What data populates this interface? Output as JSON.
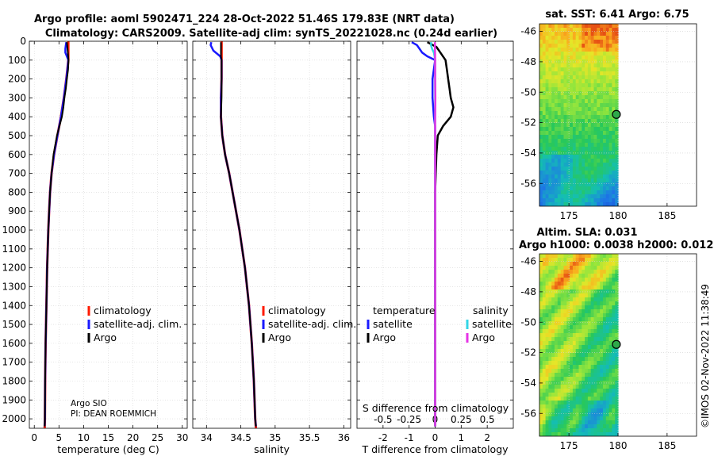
{
  "header": {
    "title_line1": "Argo profile: aoml 5902471_224 28-Oct-2022 51.46S 179.83E (NRT data)",
    "title_line2": "Climatology: CARS2009. Satellite-adj clim: synTS_20221028.nc (0.24d earlier)"
  },
  "footer": {
    "credit_line1": "Argo SIO",
    "credit_line2": "PI: DEAN ROEMMICH",
    "imos_stamp": "©IMOS 02-Nov-2022 11:38:49"
  },
  "colors": {
    "climatology": "#ff1a00",
    "satellite_adj": "#1a1aff",
    "argo": "#000000",
    "temp_satellite": "#1a1aff",
    "sal_satellite": "#33d6e6",
    "sal_argo": "#e633e6"
  },
  "chart_data": [
    {
      "type": "line",
      "name": "temperature-profile",
      "xlabel": "temperature (deg C)",
      "ylabel": "",
      "xlim": [
        -1,
        31
      ],
      "ylim": [
        2050,
        0
      ],
      "xticks": [
        0,
        5,
        10,
        15,
        20,
        25,
        30
      ],
      "xtick_labels": [
        "0",
        "5",
        "10",
        "15",
        "20",
        "25",
        "30"
      ],
      "yticks": [
        0,
        100,
        200,
        300,
        400,
        500,
        600,
        700,
        800,
        900,
        1000,
        1100,
        1200,
        1300,
        1400,
        1500,
        1600,
        1700,
        1800,
        1900,
        2000
      ],
      "ytick_labels": [
        "0",
        "100",
        "200",
        "300",
        "400",
        "500",
        "600",
        "700",
        "800",
        "900",
        "1000",
        "1100",
        "1200",
        "1300",
        "1400",
        "1500",
        "1600",
        "1700",
        "1800",
        "1900",
        "2000"
      ],
      "grid": true,
      "legend": [
        "climatology",
        "satellite-adj. clim.",
        "Argo"
      ],
      "legend_position": "center-right",
      "series": [
        {
          "name": "climatology",
          "depth": [
            0,
            50,
            100,
            150,
            200,
            300,
            400,
            500,
            600,
            700,
            800,
            900,
            1000,
            1200,
            1400,
            1600,
            1800,
            2000,
            2050
          ],
          "values": [
            6.9,
            6.9,
            6.9,
            6.7,
            6.5,
            6.0,
            5.4,
            4.7,
            4.0,
            3.5,
            3.2,
            3.0,
            2.85,
            2.6,
            2.45,
            2.3,
            2.2,
            2.15,
            2.1
          ]
        },
        {
          "name": "satellite-adj. clim.",
          "depth": [
            5,
            20,
            40,
            60,
            80,
            100,
            150,
            200,
            300,
            400,
            500,
            600,
            700,
            800,
            1000,
            1200,
            1400,
            1600,
            1800,
            2000,
            2040
          ],
          "values": [
            6.5,
            6.4,
            6.3,
            6.3,
            6.6,
            6.9,
            6.7,
            6.5,
            6.0,
            5.4,
            4.7,
            4.0,
            3.5,
            3.2,
            2.85,
            2.6,
            2.45,
            2.3,
            2.2,
            2.15,
            2.1
          ]
        },
        {
          "name": "Argo",
          "depth": [
            5,
            100,
            150,
            200,
            250,
            300,
            350,
            400,
            450,
            500,
            600,
            700,
            800,
            1000,
            1200,
            1400,
            1600,
            1800,
            2000,
            2040
          ],
          "values": [
            6.6,
            6.95,
            6.85,
            6.6,
            6.4,
            6.1,
            5.9,
            5.6,
            5.1,
            4.6,
            3.9,
            3.5,
            3.2,
            2.85,
            2.6,
            2.45,
            2.3,
            2.2,
            2.15,
            2.1
          ]
        }
      ]
    },
    {
      "type": "line",
      "name": "salinity-profile",
      "xlabel": "salinity",
      "ylabel": "",
      "xlim": [
        33.8,
        36.1
      ],
      "ylim": [
        2050,
        0
      ],
      "xticks": [
        34,
        34.5,
        35,
        35.5,
        36
      ],
      "xtick_labels": [
        "34",
        "34.5",
        "35",
        "35.5",
        "36"
      ],
      "grid": true,
      "legend": [
        "climatology",
        "satellite-adj. clim.",
        "Argo"
      ],
      "legend_position": "center-right",
      "series": [
        {
          "name": "climatology",
          "depth": [
            0,
            100,
            200,
            300,
            400,
            500,
            600,
            700,
            800,
            900,
            1000,
            1200,
            1400,
            1600,
            1800,
            2000,
            2050
          ],
          "values": [
            34.22,
            34.22,
            34.22,
            34.21,
            34.21,
            34.23,
            34.27,
            34.33,
            34.38,
            34.43,
            34.48,
            34.56,
            34.62,
            34.66,
            34.69,
            34.71,
            34.72
          ]
        },
        {
          "name": "satellite-adj. clim.",
          "depth": [
            5,
            20,
            50,
            80,
            100,
            150,
            200,
            300,
            400,
            500,
            600,
            700,
            800,
            1000,
            1200,
            1400,
            1600,
            1800,
            2000,
            2040
          ],
          "values": [
            34.07,
            34.06,
            34.1,
            34.2,
            34.22,
            34.22,
            34.22,
            34.21,
            34.21,
            34.23,
            34.27,
            34.33,
            34.38,
            34.48,
            34.56,
            34.62,
            34.66,
            34.69,
            34.71,
            34.72
          ]
        },
        {
          "name": "Argo",
          "depth": [
            5,
            80,
            100,
            200,
            300,
            400,
            500,
            600,
            700,
            800,
            1000,
            1200,
            1400,
            1600,
            1800,
            2000,
            2040
          ],
          "values": [
            34.21,
            34.21,
            34.22,
            34.22,
            34.22,
            34.21,
            34.23,
            34.27,
            34.33,
            34.38,
            34.48,
            34.56,
            34.62,
            34.66,
            34.69,
            34.71,
            34.72
          ]
        }
      ]
    },
    {
      "type": "line",
      "name": "difference-profile",
      "xlabel": "T difference from climatology",
      "xlabel_top": "S difference from climatology",
      "xlim": [
        -3,
        3
      ],
      "ylim": [
        2050,
        0
      ],
      "xticks": [
        -2,
        -1,
        0,
        1,
        2
      ],
      "xtick_labels": [
        "-2",
        "-1",
        "0",
        "1",
        "2"
      ],
      "top_ticks": [
        -0.5,
        -0.25,
        0,
        0.25,
        0.5
      ],
      "top_tick_labels": [
        "-0.5",
        "-0.25",
        "0",
        "0.25",
        "0.5"
      ],
      "grid": true,
      "legend_temperature_title": "temperature",
      "legend_salinity_title": "salinity",
      "legend_temperature": [
        "satellite",
        "Argo"
      ],
      "legend_salinity": [
        "satellite",
        "Argo"
      ],
      "series": [
        {
          "name": "temperature satellite",
          "depth": [
            5,
            20,
            40,
            60,
            80,
            100,
            200,
            300,
            400,
            450,
            500,
            600,
            800,
            1000,
            1500,
            2000,
            2040
          ],
          "values": [
            -0.9,
            -0.7,
            -0.6,
            -0.5,
            -0.3,
            0.0,
            -0.1,
            -0.1,
            -0.05,
            0.0,
            0.0,
            0.0,
            0.0,
            0.0,
            0.0,
            0.0,
            0.0
          ]
        },
        {
          "name": "temperature Argo",
          "depth": [
            5,
            30,
            60,
            100,
            150,
            200,
            250,
            300,
            350,
            400,
            450,
            500,
            600,
            800,
            1000,
            1500,
            2000,
            2040
          ],
          "values": [
            -0.3,
            0.05,
            0.2,
            0.4,
            0.45,
            0.5,
            0.55,
            0.6,
            0.7,
            0.6,
            0.3,
            0.1,
            0.05,
            0.0,
            0.0,
            0.0,
            0.0,
            0.0
          ]
        },
        {
          "name": "salinity satellite",
          "depth": [
            5,
            20,
            40,
            60,
            80,
            100,
            200,
            400,
            600,
            1000,
            2000,
            2040
          ],
          "values": [
            -0.15,
            -0.16,
            -0.12,
            -0.05,
            -0.02,
            0.0,
            0.0,
            0.0,
            0.0,
            0.0,
            0.0,
            0.0
          ]
        },
        {
          "name": "salinity Argo",
          "depth": [
            5,
            100,
            200,
            300,
            400,
            500,
            600,
            800,
            1000,
            1500,
            2000,
            2040
          ],
          "values": [
            -0.01,
            0.0,
            0.0,
            0.01,
            0.0,
            0.0,
            0.0,
            0.0,
            0.0,
            0.0,
            0.0,
            0.0
          ]
        }
      ]
    },
    {
      "type": "heatmap",
      "name": "sst-map",
      "title": "sat. SST: 6.41 Argo: 6.75",
      "xlim": [
        172,
        188
      ],
      "ylim": [
        -57.5,
        -45.5
      ],
      "xticks": [
        175,
        180,
        185
      ],
      "xtick_labels": [
        "175",
        "180",
        "185"
      ],
      "yticks": [
        -46,
        -48,
        -50,
        -52,
        -54,
        -56
      ],
      "ytick_labels": [
        "-46",
        "-48",
        "-50",
        "-52",
        "-54",
        "-56"
      ],
      "data_lon_max": 180,
      "float_position": {
        "lon": 179.83,
        "lat": -51.46
      }
    },
    {
      "type": "heatmap",
      "name": "sla-map",
      "title_line1": "Altim. SLA: 0.031",
      "title_line2": "Argo h1000: 0.0038 h2000: 0.012",
      "xlim": [
        172,
        188
      ],
      "ylim": [
        -57.5,
        -45.5
      ],
      "xticks": [
        175,
        180,
        185
      ],
      "xtick_labels": [
        "175",
        "180",
        "185"
      ],
      "yticks": [
        -46,
        -48,
        -50,
        -52,
        -54,
        -56
      ],
      "ytick_labels": [
        "-46",
        "-48",
        "-50",
        "-52",
        "-54",
        "-56"
      ],
      "data_lon_max": 180,
      "float_position": {
        "lon": 179.83,
        "lat": -51.46
      }
    }
  ]
}
